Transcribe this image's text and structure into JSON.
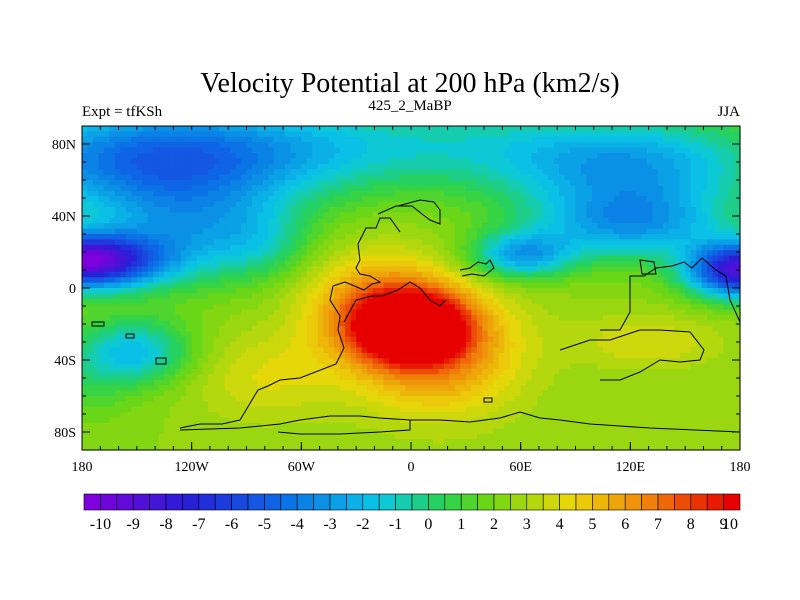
{
  "chart_data": {
    "type": "heatmap",
    "title": "Velocity Potential at 200 hPa (km2/s)",
    "left_label": "Expt = tfKSh",
    "center_label": "425_2_MaBP",
    "right_label": "JJA",
    "xlim": [
      -180,
      180
    ],
    "ylim": [
      -90,
      90
    ],
    "x_ticks": [
      {
        "value": -180,
        "label": "180"
      },
      {
        "value": -120,
        "label": "120W"
      },
      {
        "value": -60,
        "label": "60W"
      },
      {
        "value": 0,
        "label": "0"
      },
      {
        "value": 60,
        "label": "60E"
      },
      {
        "value": 120,
        "label": "120E"
      },
      {
        "value": 180,
        "label": "180"
      }
    ],
    "y_ticks": [
      {
        "value": 80,
        "label": "80N"
      },
      {
        "value": 40,
        "label": "40N"
      },
      {
        "value": 0,
        "label": "0"
      },
      {
        "value": -40,
        "label": "40S"
      },
      {
        "value": -80,
        "label": "80S"
      }
    ],
    "colorbar": {
      "min": -10,
      "max": 10,
      "step": 0.5,
      "labels": [
        "-10",
        "-9",
        "-8",
        "-7",
        "-6",
        "-5",
        "-4",
        "-3",
        "-2",
        "-1",
        "0",
        "1",
        "2",
        "3",
        "4",
        "5",
        "6",
        "7",
        "8",
        "9",
        "10"
      ]
    },
    "field": {
      "background": 3.0,
      "features": [
        {
          "lon": 0,
          "lat": -22,
          "amp": 9.0,
          "rlon": 28,
          "rlat": 18
        },
        {
          "lon": 15,
          "lat": -35,
          "amp": 4.0,
          "rlon": 45,
          "rlat": 35
        },
        {
          "lon": -20,
          "lat": -10,
          "amp": 3.5,
          "rlon": 40,
          "rlat": 30
        },
        {
          "lon": -80,
          "lat": -50,
          "amp": 1.5,
          "rlon": 40,
          "rlat": 25
        },
        {
          "lon": 130,
          "lat": -30,
          "amp": 1.5,
          "rlon": 40,
          "rlat": 15
        },
        {
          "lon": -180,
          "lat": 15,
          "amp": -12.0,
          "rlon": 40,
          "rlat": 15
        },
        {
          "lon": 180,
          "lat": 10,
          "amp": -11.0,
          "rlon": 28,
          "rlat": 15
        },
        {
          "lon": -120,
          "lat": 30,
          "amp": -4.0,
          "rlon": 50,
          "rlat": 28
        },
        {
          "lon": 60,
          "lat": 18,
          "amp": -5.0,
          "rlon": 28,
          "rlat": 13
        },
        {
          "lon": 120,
          "lat": 35,
          "amp": -5.0,
          "rlon": 55,
          "rlat": 20
        },
        {
          "lon": 120,
          "lat": 65,
          "amp": -4.0,
          "rlon": 70,
          "rlat": 25
        },
        {
          "lon": -140,
          "lat": 70,
          "amp": -6.0,
          "rlon": 90,
          "rlat": 30
        },
        {
          "lon": 0,
          "lat": 80,
          "amp": -3.0,
          "rlon": 180,
          "rlat": 25
        },
        {
          "lon": -80,
          "lat": 25,
          "amp": -1.5,
          "rlon": 25,
          "rlat": 20
        },
        {
          "lon": -150,
          "lat": -35,
          "amp": -4.0,
          "rlon": 30,
          "rlat": 18
        },
        {
          "lon": -180,
          "lat": -50,
          "amp": -1.5,
          "rlon": 30,
          "rlat": 25
        }
      ]
    }
  }
}
